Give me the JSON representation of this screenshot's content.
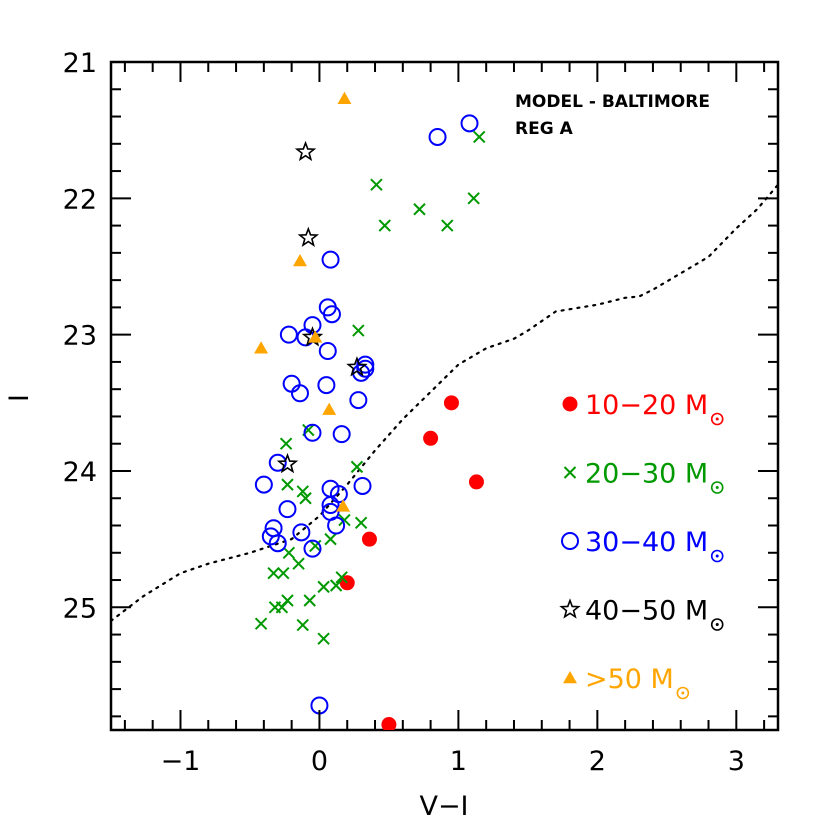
{
  "chart_data": {
    "type": "scatter",
    "title": "",
    "xlabel": "V−I",
    "ylabel": "I",
    "xlim": [
      -1.5,
      3.3
    ],
    "ylim": [
      25.9,
      21.0
    ],
    "y_inverted": true,
    "xticks": [
      -1,
      0,
      1,
      2,
      3
    ],
    "xtick_labels": [
      "−1",
      "0",
      "1",
      "2",
      "3"
    ],
    "yticks": [
      21,
      22,
      23,
      24,
      25
    ],
    "ytick_labels": [
      "21",
      "22",
      "23",
      "24",
      "25"
    ],
    "annotations": [
      "MODEL - BALTIMORE",
      "REG A"
    ],
    "legend_position": "right",
    "series": [
      {
        "name": "10−20",
        "unit": "M",
        "marker": "filled-circle",
        "color": "#ff0000",
        "points": [
          [
            0.95,
            23.5
          ],
          [
            0.8,
            23.76
          ],
          [
            1.13,
            24.08
          ],
          [
            0.36,
            24.5
          ],
          [
            0.2,
            24.82
          ],
          [
            0.5,
            25.86
          ]
        ]
      },
      {
        "name": "20−30",
        "unit": "M",
        "marker": "cross",
        "color": "#009900",
        "points": [
          [
            1.15,
            21.55
          ],
          [
            0.41,
            21.9
          ],
          [
            0.72,
            22.08
          ],
          [
            1.11,
            22.0
          ],
          [
            0.47,
            22.2
          ],
          [
            0.92,
            22.2
          ],
          [
            0.28,
            22.97
          ],
          [
            -0.24,
            23.8
          ],
          [
            -0.08,
            23.7
          ],
          [
            0.27,
            23.97
          ],
          [
            -0.23,
            24.1
          ],
          [
            -0.12,
            24.15
          ],
          [
            -0.1,
            24.2
          ],
          [
            0.18,
            24.36
          ],
          [
            0.3,
            24.38
          ],
          [
            0.08,
            24.5
          ],
          [
            -0.03,
            24.55
          ],
          [
            -0.22,
            24.6
          ],
          [
            -0.15,
            24.68
          ],
          [
            -0.33,
            24.75
          ],
          [
            -0.26,
            24.75
          ],
          [
            -0.27,
            25.0
          ],
          [
            -0.23,
            24.95
          ],
          [
            0.03,
            24.85
          ],
          [
            0.12,
            24.84
          ],
          [
            -0.32,
            25.0
          ],
          [
            -0.07,
            24.95
          ],
          [
            -0.42,
            25.12
          ],
          [
            -0.12,
            25.13
          ],
          [
            0.03,
            25.23
          ],
          [
            0.16,
            24.78
          ]
        ]
      },
      {
        "name": "30−40",
        "unit": "M",
        "marker": "open-circle",
        "color": "#0000ff",
        "points": [
          [
            1.08,
            21.45
          ],
          [
            0.85,
            21.55
          ],
          [
            0.08,
            22.45
          ],
          [
            -0.22,
            23.0
          ],
          [
            -0.1,
            23.02
          ],
          [
            -0.05,
            22.93
          ],
          [
            0.06,
            22.8
          ],
          [
            0.09,
            22.85
          ],
          [
            0.06,
            23.12
          ],
          [
            0.33,
            23.22
          ],
          [
            0.3,
            23.28
          ],
          [
            0.33,
            23.25
          ],
          [
            -0.2,
            23.36
          ],
          [
            -0.14,
            23.43
          ],
          [
            0.05,
            23.37
          ],
          [
            0.28,
            23.48
          ],
          [
            -0.05,
            23.72
          ],
          [
            0.16,
            23.73
          ],
          [
            -0.3,
            23.94
          ],
          [
            -0.4,
            24.1
          ],
          [
            0.08,
            24.13
          ],
          [
            0.14,
            24.17
          ],
          [
            0.31,
            24.11
          ],
          [
            -0.23,
            24.28
          ],
          [
            0.08,
            24.25
          ],
          [
            0.08,
            24.3
          ],
          [
            0.12,
            24.4
          ],
          [
            -0.33,
            24.42
          ],
          [
            -0.35,
            24.48
          ],
          [
            -0.3,
            24.53
          ],
          [
            -0.13,
            24.45
          ],
          [
            -0.05,
            24.57
          ],
          [
            0.0,
            25.72
          ]
        ]
      },
      {
        "name": "40−50",
        "unit": "M",
        "marker": "open-star",
        "color": "#000000",
        "points": [
          [
            -0.1,
            21.66
          ],
          [
            -0.08,
            22.29
          ],
          [
            -0.05,
            23.02
          ],
          [
            0.27,
            23.24
          ],
          [
            -0.23,
            23.95
          ]
        ]
      },
      {
        "name": ">50",
        "unit": "M",
        "marker": "filled-triangle",
        "color": "#ffa500",
        "points": [
          [
            0.18,
            21.27
          ],
          [
            -0.14,
            22.46
          ],
          [
            -0.42,
            23.1
          ],
          [
            -0.03,
            23.02
          ],
          [
            0.07,
            23.55
          ],
          [
            0.17,
            24.26
          ]
        ]
      },
      {
        "name": "",
        "type": "line",
        "style": "dotted",
        "color": "#000000",
        "points": [
          [
            -1.5,
            25.1
          ],
          [
            -1.27,
            24.92
          ],
          [
            -1.0,
            24.75
          ],
          [
            -0.8,
            24.68
          ],
          [
            -0.5,
            24.6
          ],
          [
            -0.2,
            24.5
          ],
          [
            0.0,
            24.33
          ],
          [
            0.2,
            24.1
          ],
          [
            0.4,
            23.85
          ],
          [
            0.6,
            23.62
          ],
          [
            0.8,
            23.42
          ],
          [
            1.0,
            23.22
          ],
          [
            1.2,
            23.1
          ],
          [
            1.4,
            23.03
          ],
          [
            1.5,
            22.97
          ],
          [
            1.7,
            22.83
          ],
          [
            2.0,
            22.78
          ],
          [
            2.2,
            22.73
          ],
          [
            2.3,
            22.72
          ],
          [
            2.4,
            22.67
          ],
          [
            2.6,
            22.55
          ],
          [
            2.8,
            22.43
          ],
          [
            3.0,
            22.22
          ],
          [
            3.15,
            22.08
          ],
          [
            3.3,
            21.9
          ]
        ]
      }
    ]
  }
}
